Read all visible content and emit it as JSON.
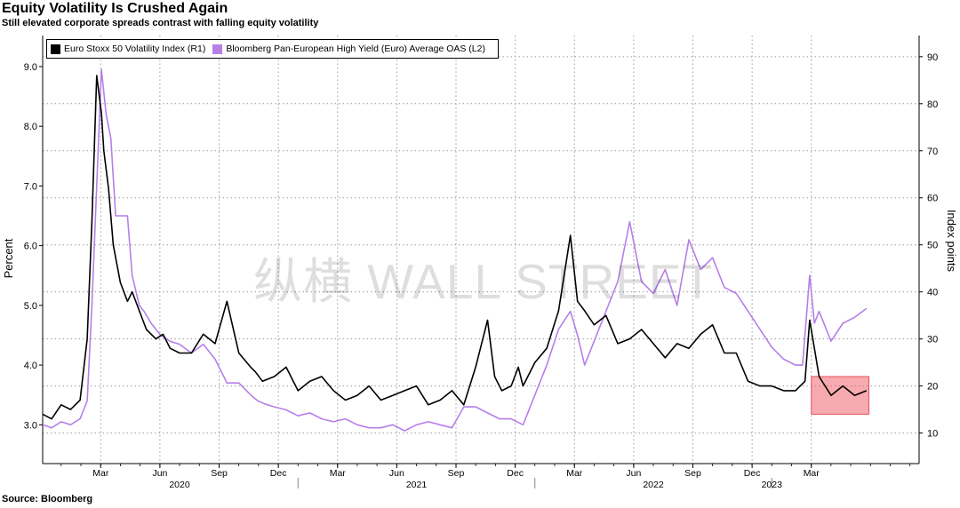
{
  "title": "Equity Volatility Is Crushed Again",
  "subtitle": "Still elevated corporate spreads contrast with falling equity volatility",
  "source": "Source: Bloomberg",
  "watermark": "纵横 WALL STREET",
  "colors": {
    "vol": "#000000",
    "oas": "#b77fe8",
    "highlight": "#e8505b",
    "grid": "#9a9a9a"
  },
  "chart_data": {
    "type": "line",
    "left_axis": {
      "label": "Percent",
      "ticks": [
        "3.0",
        "4.0",
        "5.0",
        "6.0",
        "7.0",
        "8.0",
        "9.0"
      ],
      "range": [
        2.35,
        9.52
      ]
    },
    "right_axis": {
      "label": "Index points",
      "ticks": [
        "10",
        "20",
        "30",
        "40",
        "50",
        "60",
        "70",
        "80",
        "90"
      ],
      "range": [
        3.5,
        94.5
      ]
    },
    "x_axis": {
      "range": [
        2019.922,
        2023.622
      ],
      "month_ticks": [
        {
          "label": "Mar",
          "x": 2020.167
        },
        {
          "label": "Jun",
          "x": 2020.417
        },
        {
          "label": "Sep",
          "x": 2020.667
        },
        {
          "label": "Dec",
          "x": 2020.917
        },
        {
          "label": "Mar",
          "x": 2021.167
        },
        {
          "label": "Jun",
          "x": 2021.417
        },
        {
          "label": "Sep",
          "x": 2021.667
        },
        {
          "label": "Dec",
          "x": 2021.917
        },
        {
          "label": "Mar",
          "x": 2022.167
        },
        {
          "label": "Jun",
          "x": 2022.417
        },
        {
          "label": "Sep",
          "x": 2022.667
        },
        {
          "label": "Dec",
          "x": 2022.917
        },
        {
          "label": "Mar",
          "x": 2023.167
        }
      ],
      "year_labels": [
        {
          "label": "2020",
          "x": 2020.5
        },
        {
          "label": "2021",
          "x": 2021.5
        },
        {
          "label": "2022",
          "x": 2022.5
        },
        {
          "label": "2023",
          "x": 2023.0
        }
      ],
      "year_separators": [
        2021.0,
        2022.0,
        2023.0
      ]
    },
    "series": [
      {
        "name": "Euro Stoxx 50 Volatility Index (R1)",
        "axis": "right",
        "x": [
          2019.922,
          2019.96,
          2020.0,
          2020.04,
          2020.08,
          2020.11,
          2020.13,
          2020.15,
          2020.17,
          2020.18,
          2020.2,
          2020.22,
          2020.25,
          2020.28,
          2020.3,
          2020.33,
          2020.36,
          2020.4,
          2020.43,
          2020.46,
          2020.5,
          2020.55,
          2020.6,
          2020.65,
          2020.7,
          2020.75,
          2020.8,
          2020.82,
          2020.85,
          2020.9,
          2020.95,
          2021.0,
          2021.05,
          2021.1,
          2021.15,
          2021.2,
          2021.25,
          2021.3,
          2021.35,
          2021.4,
          2021.45,
          2021.5,
          2021.55,
          2021.6,
          2021.65,
          2021.7,
          2021.75,
          2021.8,
          2021.83,
          2021.86,
          2021.9,
          2021.93,
          2021.95,
          2022.0,
          2022.05,
          2022.1,
          2022.15,
          2022.18,
          2022.21,
          2022.25,
          2022.3,
          2022.35,
          2022.4,
          2022.45,
          2022.5,
          2022.55,
          2022.6,
          2022.65,
          2022.7,
          2022.75,
          2022.8,
          2022.85,
          2022.9,
          2022.95,
          2023.0,
          2023.05,
          2023.1,
          2023.14,
          2023.16,
          2023.2,
          2023.25,
          2023.3,
          2023.35,
          2023.4
        ],
        "y": [
          14,
          13,
          16,
          15,
          17,
          30,
          55,
          86,
          78,
          70,
          62,
          50,
          42,
          38,
          40,
          36,
          32,
          30,
          31,
          28,
          27,
          27,
          31,
          29,
          38,
          27,
          24,
          23,
          21,
          22,
          24,
          19,
          21,
          22,
          19,
          17,
          18,
          20,
          17,
          18,
          19,
          20,
          16,
          17,
          19,
          16,
          24,
          34,
          22,
          19,
          20,
          24,
          20,
          25,
          28,
          36,
          52,
          38,
          36,
          33,
          35,
          29,
          30,
          32,
          29,
          26,
          29,
          28,
          31,
          33,
          27,
          27,
          21,
          20,
          20,
          19,
          19,
          21,
          34,
          22,
          18,
          20,
          18,
          19
        ]
      },
      {
        "name": "Bloomberg Pan-European High Yield (Euro) Average OAS  (L2)",
        "axis": "left",
        "x": [
          2019.922,
          2019.96,
          2020.0,
          2020.04,
          2020.08,
          2020.11,
          2020.13,
          2020.15,
          2020.17,
          2020.19,
          2020.21,
          2020.23,
          2020.25,
          2020.28,
          2020.3,
          2020.33,
          2020.35,
          2020.38,
          2020.42,
          2020.46,
          2020.5,
          2020.55,
          2020.6,
          2020.65,
          2020.7,
          2020.75,
          2020.8,
          2020.83,
          2020.86,
          2020.9,
          2020.95,
          2021.0,
          2021.05,
          2021.1,
          2021.15,
          2021.2,
          2021.25,
          2021.3,
          2021.35,
          2021.4,
          2021.45,
          2021.5,
          2021.55,
          2021.6,
          2021.65,
          2021.7,
          2021.75,
          2021.8,
          2021.85,
          2021.9,
          2021.95,
          2022.0,
          2022.05,
          2022.1,
          2022.15,
          2022.18,
          2022.21,
          2022.25,
          2022.3,
          2022.35,
          2022.4,
          2022.42,
          2022.45,
          2022.5,
          2022.55,
          2022.6,
          2022.65,
          2022.7,
          2022.75,
          2022.8,
          2022.85,
          2022.9,
          2022.95,
          2023.0,
          2023.05,
          2023.1,
          2023.13,
          2023.16,
          2023.18,
          2023.2,
          2023.25,
          2023.3,
          2023.35,
          2023.4
        ],
        "y": [
          3.0,
          2.95,
          3.05,
          3.0,
          3.1,
          3.4,
          5.0,
          7.0,
          8.95,
          8.2,
          7.8,
          6.5,
          6.5,
          6.5,
          5.5,
          5.0,
          4.9,
          4.7,
          4.5,
          4.4,
          4.35,
          4.2,
          4.35,
          4.1,
          3.7,
          3.7,
          3.5,
          3.4,
          3.35,
          3.3,
          3.25,
          3.15,
          3.2,
          3.1,
          3.05,
          3.1,
          3.0,
          2.95,
          2.95,
          3.0,
          2.9,
          3.0,
          3.05,
          3.0,
          2.95,
          3.3,
          3.3,
          3.2,
          3.1,
          3.1,
          3.0,
          3.5,
          4.0,
          4.6,
          4.9,
          4.5,
          4.0,
          4.4,
          4.9,
          5.4,
          6.4,
          6.0,
          5.4,
          5.2,
          5.6,
          5.0,
          6.1,
          5.6,
          5.8,
          5.3,
          5.2,
          4.9,
          4.6,
          4.3,
          4.1,
          4.0,
          4.0,
          5.5,
          4.7,
          4.9,
          4.4,
          4.7,
          4.8,
          4.95
        ]
      }
    ],
    "highlight": {
      "x0": 2023.167,
      "x1": 2023.41,
      "y0": 14,
      "y1": 22,
      "axis": "right"
    }
  }
}
